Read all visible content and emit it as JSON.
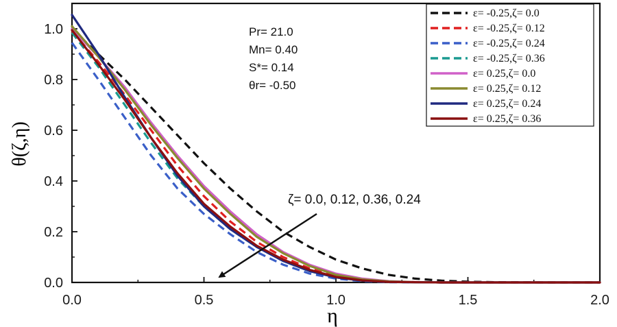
{
  "chart_data": {
    "type": "line",
    "xlabel": "η",
    "ylabel": "θ(ζ,η)",
    "xlim": [
      0.0,
      2.0
    ],
    "ylim": [
      0.0,
      1.1
    ],
    "xticks": [
      "0.0",
      "0.5",
      "1.0",
      "1.5",
      "2.0"
    ],
    "yticks": [
      "0.0",
      "0.2",
      "0.4",
      "0.6",
      "0.8",
      "1.0"
    ],
    "params": [
      "Pr= 21.0",
      "Mn= 0.40",
      "S*= 0.14",
      "θr= -0.50"
    ],
    "annotation": "ζ= 0.0, 0.12, 0.36, 0.24",
    "series": [
      {
        "name": "ε= -0.25,ζ= 0.0",
        "color": "#111111",
        "dash": true,
        "x": [
          0.0,
          0.1,
          0.2,
          0.3,
          0.4,
          0.5,
          0.6,
          0.7,
          0.8,
          0.9,
          1.0,
          1.1,
          1.2,
          1.3,
          1.4,
          1.5,
          1.6,
          1.8,
          2.0
        ],
        "y": [
          1.0,
          0.9,
          0.8,
          0.69,
          0.58,
          0.47,
          0.37,
          0.28,
          0.2,
          0.14,
          0.09,
          0.055,
          0.03,
          0.015,
          0.007,
          0.003,
          0.001,
          0.0,
          0.0
        ]
      },
      {
        "name": "ε= -0.25,ζ= 0.12",
        "color": "#e02020",
        "dash": true,
        "x": [
          0.0,
          0.1,
          0.2,
          0.3,
          0.4,
          0.5,
          0.6,
          0.7,
          0.8,
          0.9,
          1.0,
          1.1,
          1.2,
          1.4,
          1.6,
          2.0
        ],
        "y": [
          0.99,
          0.87,
          0.74,
          0.6,
          0.46,
          0.34,
          0.24,
          0.16,
          0.1,
          0.055,
          0.025,
          0.01,
          0.003,
          0.0,
          0.0,
          0.0
        ]
      },
      {
        "name": "ε= -0.25,ζ= 0.24",
        "color": "#3a5fc8",
        "dash": true,
        "x": [
          0.0,
          0.1,
          0.2,
          0.3,
          0.4,
          0.5,
          0.6,
          0.7,
          0.8,
          0.9,
          1.0,
          1.1,
          1.2,
          1.4,
          1.6,
          2.0
        ],
        "y": [
          0.945,
          0.8,
          0.65,
          0.5,
          0.37,
          0.27,
          0.19,
          0.12,
          0.07,
          0.035,
          0.015,
          0.005,
          0.001,
          0.0,
          0.0,
          0.0
        ]
      },
      {
        "name": "ε= -0.25,ζ= 0.36",
        "color": "#1a9a90",
        "dash": true,
        "x": [
          0.0,
          0.1,
          0.2,
          0.3,
          0.4,
          0.5,
          0.6,
          0.7,
          0.8,
          0.9,
          1.0,
          1.1,
          1.2,
          1.4,
          1.6,
          2.0
        ],
        "y": [
          0.985,
          0.85,
          0.7,
          0.55,
          0.41,
          0.3,
          0.21,
          0.14,
          0.085,
          0.045,
          0.02,
          0.008,
          0.002,
          0.0,
          0.0,
          0.0
        ]
      },
      {
        "name": "ε= 0.25,ζ= 0.0",
        "color": "#d060c8",
        "dash": false,
        "x": [
          0.0,
          0.1,
          0.2,
          0.3,
          0.4,
          0.5,
          0.6,
          0.7,
          0.8,
          0.9,
          1.0,
          1.1,
          1.2,
          1.3,
          1.4,
          1.6,
          2.0
        ],
        "y": [
          1.0,
          0.89,
          0.77,
          0.63,
          0.5,
          0.38,
          0.28,
          0.19,
          0.12,
          0.07,
          0.035,
          0.015,
          0.005,
          0.001,
          0.0,
          0.0,
          0.0
        ]
      },
      {
        "name": "ε= 0.25,ζ= 0.12",
        "color": "#8a8a30",
        "dash": false,
        "x": [
          0.0,
          0.1,
          0.2,
          0.3,
          0.4,
          0.5,
          0.6,
          0.7,
          0.8,
          0.9,
          1.0,
          1.1,
          1.2,
          1.3,
          1.4,
          1.6,
          2.0
        ],
        "y": [
          1.01,
          0.89,
          0.76,
          0.62,
          0.49,
          0.37,
          0.27,
          0.18,
          0.115,
          0.065,
          0.03,
          0.012,
          0.004,
          0.001,
          0.0,
          0.0,
          0.0
        ]
      },
      {
        "name": "ε= 0.25,ζ= 0.24",
        "color": "#202a80",
        "dash": false,
        "x": [
          0.0,
          0.1,
          0.2,
          0.3,
          0.4,
          0.5,
          0.6,
          0.7,
          0.8,
          0.9,
          1.0,
          1.1,
          1.2,
          1.4,
          1.6,
          2.0
        ],
        "y": [
          1.055,
          0.9,
          0.73,
          0.57,
          0.42,
          0.3,
          0.21,
          0.14,
          0.085,
          0.045,
          0.02,
          0.007,
          0.002,
          0.0,
          0.0,
          0.0
        ]
      },
      {
        "name": "ε= 0.25,ζ= 0.36",
        "color": "#8a1010",
        "dash": false,
        "x": [
          0.0,
          0.1,
          0.2,
          0.3,
          0.4,
          0.5,
          0.6,
          0.7,
          0.8,
          0.9,
          1.0,
          1.1,
          1.2,
          1.4,
          1.6,
          2.0
        ],
        "y": [
          0.995,
          0.86,
          0.72,
          0.57,
          0.43,
          0.31,
          0.22,
          0.145,
          0.09,
          0.05,
          0.022,
          0.008,
          0.002,
          0.0,
          0.0,
          0.0
        ]
      }
    ]
  }
}
